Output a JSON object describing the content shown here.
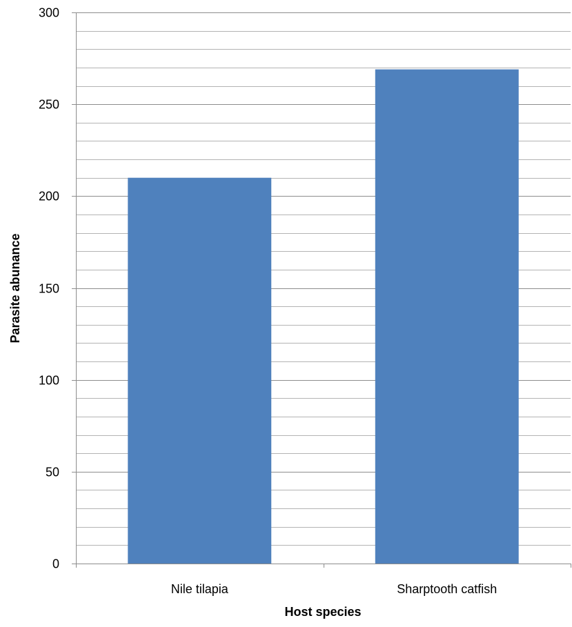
{
  "chart_data": {
    "type": "bar",
    "categories": [
      "Nile tilapia",
      "Sharptooth catfish"
    ],
    "values": [
      210,
      269
    ],
    "xlabel": "Host species",
    "ylabel": "Parasite abunance",
    "ylim": [
      0,
      300
    ],
    "major_ticks": [
      0,
      50,
      100,
      150,
      200,
      250,
      300
    ],
    "minor_step": 10,
    "grid": true,
    "bar_color": "#4F81BD",
    "major_grid_color": "#8C8C8C",
    "minor_grid_color": "#B3B3B3"
  }
}
